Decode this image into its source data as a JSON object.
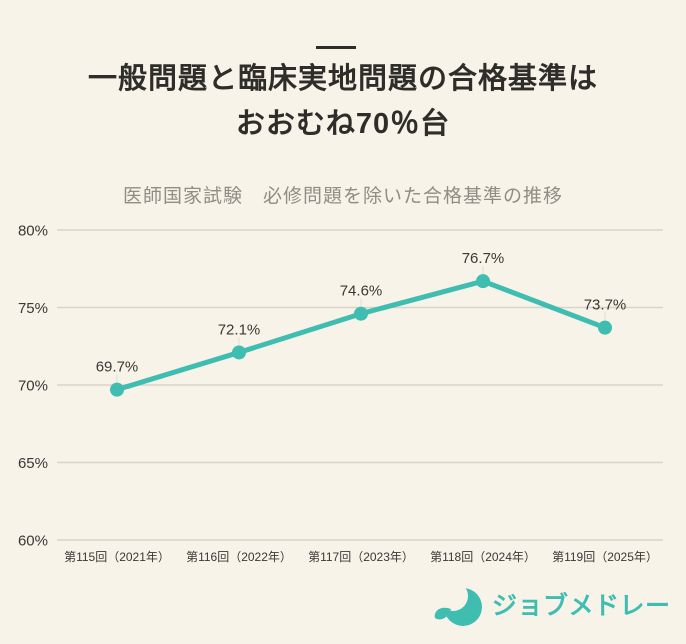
{
  "page": {
    "background_color": "#f7f3e9",
    "text_color": "#2e2d29"
  },
  "header": {
    "title_line1": "一般問題と臨床実地問題の合格基準は",
    "title_line2": "おおむね70％台"
  },
  "chart_data": {
    "type": "line",
    "title": "医師国家試験　必修問題を除いた合格基準の推移",
    "categories": [
      "第115回（2021年）",
      "第116回（2022年）",
      "第117回（2023年）",
      "第118回（2024年）",
      "第119回（2025年）"
    ],
    "values": [
      69.7,
      72.1,
      74.6,
      76.7,
      73.7
    ],
    "data_labels": [
      "69.7%",
      "72.1%",
      "74.6%",
      "76.7%",
      "73.7%"
    ],
    "xlabel": "",
    "ylabel": "",
    "ylim": [
      60,
      80
    ],
    "yticks": [
      80,
      75,
      70,
      65,
      60
    ],
    "ytick_labels": [
      "80%",
      "75%",
      "70%",
      "65%",
      "60%"
    ],
    "grid": true,
    "legend": "none",
    "line_color": "#3fbdb0",
    "point_color": "#3fbdb0",
    "grid_color": "#d8d4c9",
    "leader_color": "#e8e4da",
    "tick_color": "#3a3833",
    "label_color": "#3a3833"
  },
  "footer": {
    "brand": "ジョブメドレー",
    "brand_color": "#3fbdb0",
    "icon": "jobmedley-crescent-logo"
  }
}
